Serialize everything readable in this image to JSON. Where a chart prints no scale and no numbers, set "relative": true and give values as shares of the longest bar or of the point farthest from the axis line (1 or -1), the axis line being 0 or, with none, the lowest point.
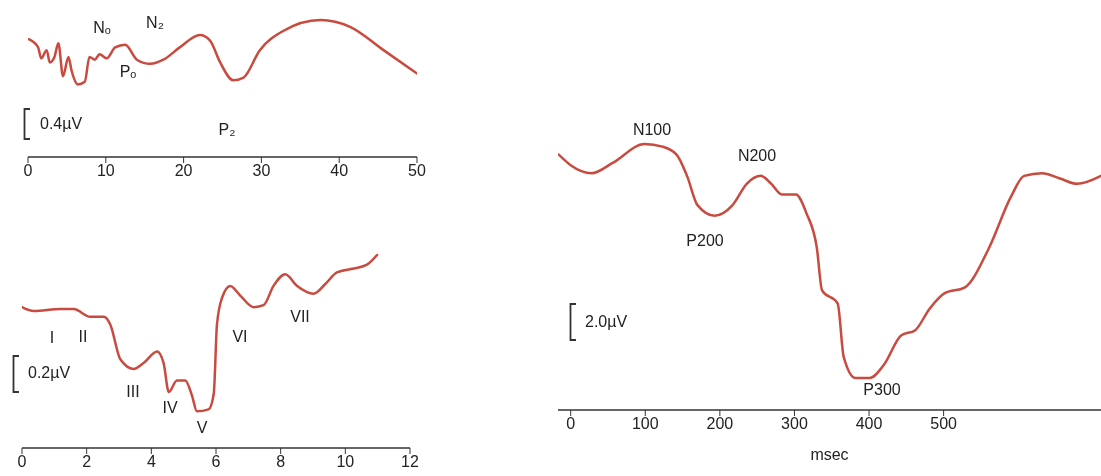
{
  "chart_data": [
    {
      "type": "line",
      "relative": true,
      "color": "#c94a3f",
      "xlim": [
        0,
        50
      ],
      "xticks": [
        0,
        10,
        20,
        30,
        40,
        50
      ],
      "x": [
        0.1,
        1.3,
        1.7,
        2.4,
        2.8,
        3.4,
        3.9,
        4.5,
        5.2,
        5.6,
        6.4,
        7.3,
        7.9,
        8.6,
        9.2,
        10.1,
        11.2,
        12.5,
        14,
        15.7,
        17.4,
        19.5,
        22.1,
        23.4,
        24.7,
        26.4,
        27.7,
        29.8,
        32.8,
        37.6,
        41.4,
        45.7,
        50
      ],
      "values": [
        0.86,
        0.8,
        0.72,
        0.78,
        0.69,
        0.73,
        0.83,
        0.59,
        0.73,
        0.63,
        0.53,
        0.55,
        0.73,
        0.71,
        0.75,
        0.72,
        0.8,
        0.82,
        0.71,
        0.68,
        0.71,
        0.8,
        0.89,
        0.85,
        0.69,
        0.56,
        0.58,
        0.78,
        0.92,
        1,
        0.95,
        0.78,
        0.61
      ],
      "annotations": [
        "Nₒ",
        "N₂",
        "Pₒ",
        "P₂",
        "0.4µV"
      ]
    },
    {
      "type": "line",
      "relative": true,
      "color": "#c94a3f",
      "xlim": [
        0,
        12
      ],
      "xticks": [
        0,
        2,
        4,
        6,
        8,
        10,
        12
      ],
      "x": [
        0,
        0.36,
        1.19,
        1.6,
        2.11,
        2.53,
        2.73,
        3.04,
        3.45,
        3.76,
        4.18,
        4.38,
        4.54,
        4.79,
        5.05,
        5.26,
        5.41,
        5.77,
        5.93,
        6.03,
        6.19,
        6.44,
        6.75,
        7.16,
        7.47,
        7.78,
        8.14,
        8.51,
        9.02,
        9.38,
        9.74,
        10.26,
        10.67,
        10.98
      ],
      "values": [
        0.73,
        0.71,
        0.72,
        0.72,
        0.68,
        0.68,
        0.64,
        0.46,
        0.41,
        0.44,
        0.5,
        0.44,
        0.29,
        0.35,
        0.35,
        0.27,
        0.19,
        0.2,
        0.28,
        0.64,
        0.78,
        0.84,
        0.79,
        0.73,
        0.74,
        0.84,
        0.9,
        0.84,
        0.8,
        0.85,
        0.91,
        0.93,
        0.95,
        1
      ],
      "annotations": [
        "I",
        "II",
        "III",
        "IV",
        "V",
        "VI",
        "VII",
        "0.2µV"
      ]
    },
    {
      "type": "line",
      "relative": true,
      "color": "#c94a3f",
      "xlim": [
        -17,
        711
      ],
      "xticks": [
        0,
        100,
        200,
        300,
        400,
        500
      ],
      "xlabel": "msec",
      "x": [
        -16,
        0,
        28,
        57,
        99,
        123,
        142,
        156,
        170,
        193,
        217,
        236,
        255,
        269,
        283,
        302,
        316,
        330,
        337,
        358,
        366,
        382,
        401,
        420,
        443,
        462,
        481,
        502,
        528,
        561,
        590,
        608,
        632,
        656,
        679,
        711
      ],
      "values": [
        0.96,
        0.92,
        0.89,
        0.93,
        1,
        0.99,
        0.96,
        0.88,
        0.77,
        0.73,
        0.77,
        0.85,
        0.88,
        0.85,
        0.81,
        0.81,
        0.74,
        0.61,
        0.45,
        0.4,
        0.2,
        0.12,
        0.12,
        0.17,
        0.28,
        0.3,
        0.38,
        0.44,
        0.46,
        0.61,
        0.8,
        0.88,
        0.89,
        0.87,
        0.85,
        0.88
      ],
      "annotations": [
        "N100",
        "N200",
        "P200",
        "P300",
        "2.0µV"
      ]
    }
  ]
}
